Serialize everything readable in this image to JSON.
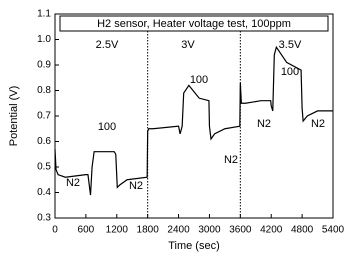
{
  "chart_data": {
    "type": "line",
    "title": "H2 sensor, Heater voltage test, 100ppm",
    "x_label": "Time (sec)",
    "y_label": "Potential (V)",
    "x": [
      0,
      20,
      60,
      200,
      600,
      640,
      690,
      720,
      760,
      1150,
      1180,
      1210,
      1260,
      1400,
      1790,
      1800,
      1820,
      1900,
      2400,
      2430,
      2470,
      2500,
      2600,
      2800,
      2990,
      3000,
      3030,
      3100,
      3300,
      3590,
      3600,
      3620,
      3700,
      4000,
      4190,
      4200,
      4230,
      4260,
      4300,
      4500,
      4780,
      4800,
      4820,
      4900,
      5100,
      5400
    ],
    "series": [
      {
        "name": "Potential",
        "color": "#000000",
        "values": [
          0.57,
          0.49,
          0.47,
          0.46,
          0.47,
          0.47,
          0.39,
          0.5,
          0.56,
          0.56,
          0.55,
          0.42,
          0.43,
          0.45,
          0.46,
          0.64,
          0.65,
          0.65,
          0.66,
          0.63,
          0.66,
          0.79,
          0.82,
          0.77,
          0.76,
          0.66,
          0.61,
          0.63,
          0.65,
          0.66,
          0.83,
          0.75,
          0.75,
          0.76,
          0.76,
          0.74,
          0.72,
          0.94,
          0.97,
          0.91,
          0.88,
          0.73,
          0.68,
          0.7,
          0.72,
          0.72
        ]
      }
    ],
    "xlim": [
      0,
      5400
    ],
    "xticks": [
      0,
      600,
      1200,
      1800,
      2400,
      3000,
      3600,
      4200,
      4800,
      5400
    ],
    "ylim": [
      0.3,
      1.1
    ],
    "yticks": [
      0.3,
      0.4,
      0.5,
      0.6,
      0.7,
      0.8,
      0.9,
      {
        "value": 1,
        "label": "1.0"
      },
      1.1
    ],
    "vlines": [
      1800,
      3600
    ],
    "annotations": [
      "2.5V",
      "3V",
      "3.5V",
      "100",
      "100",
      "100",
      "N2",
      "N2",
      "N2",
      "N2",
      "N2"
    ]
  }
}
